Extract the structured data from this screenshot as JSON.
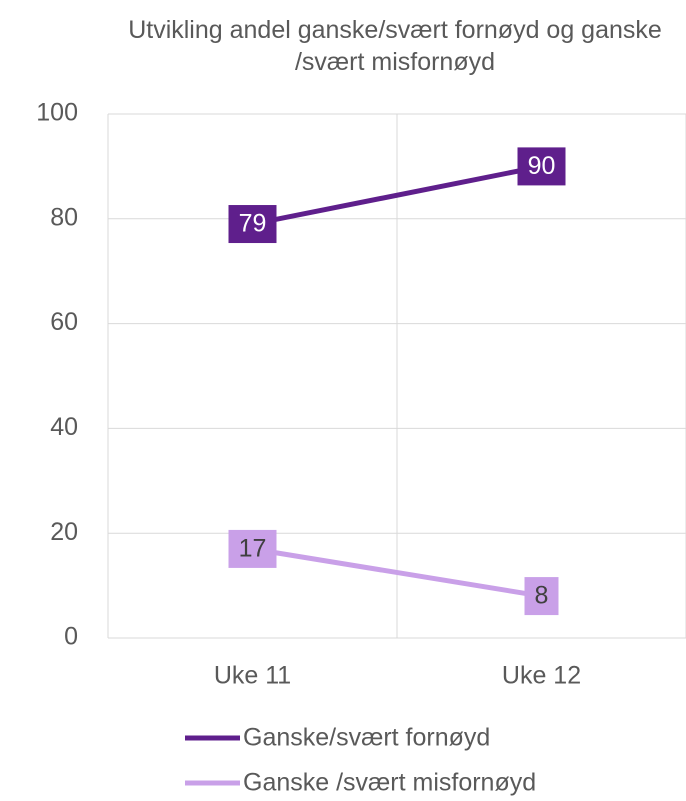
{
  "chart_data": {
    "type": "line",
    "title": "Utvikling andel ganske/svært fornøyd og ganske /svært misfornøyd",
    "categories": [
      "Uke 11",
      "Uke 12"
    ],
    "series": [
      {
        "name": "Ganske/svært fornøyd",
        "color": "#5f1f8c",
        "values": [
          79,
          90
        ]
      },
      {
        "name": "Ganske /svært misfornøyd",
        "color": "#c9a0e8",
        "values": [
          17,
          8
        ]
      }
    ],
    "ylim": [
      0,
      100
    ],
    "yticks": [
      0,
      20,
      40,
      60,
      80,
      100
    ],
    "grid": true,
    "legend": "bottom"
  }
}
